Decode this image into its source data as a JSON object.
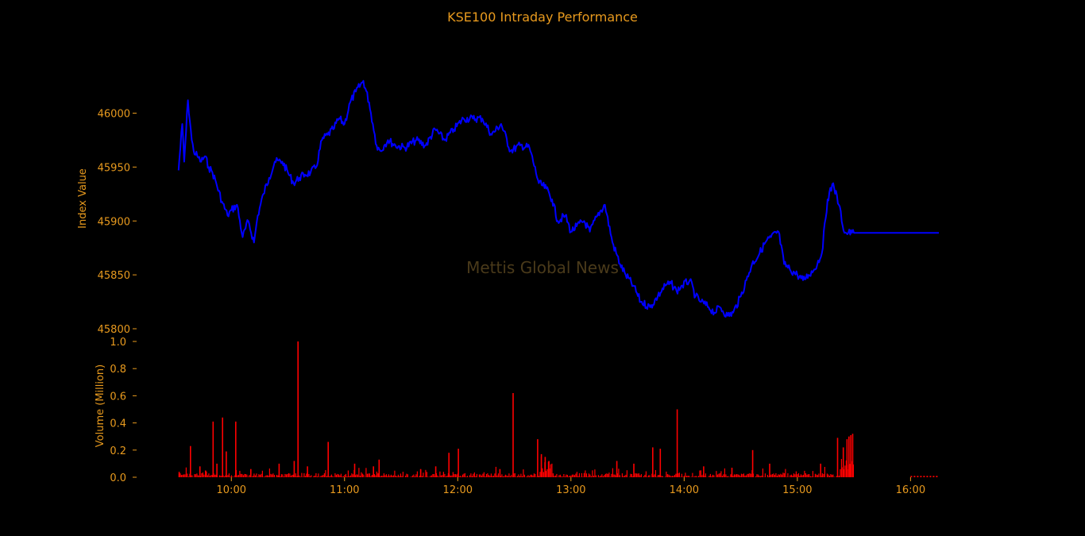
{
  "chart_data": {
    "title": "KSE100 Intraday Performance",
    "watermark": "Mettis Global News",
    "colors": {
      "text": "#e89a1e",
      "price_line": "#0000ff",
      "volume_bar": "#ff0000",
      "background": "#000000",
      "watermark": "#4a3a1a"
    },
    "panels": [
      {
        "type": "line",
        "ylabel": "Index Value",
        "ylim": [
          45800,
          46035
        ],
        "yticks": [
          45800,
          45850,
          45900,
          45950,
          46000
        ],
        "ytick_labels": [
          "45800",
          "45850",
          "45900",
          "45950",
          "46000"
        ],
        "series": [
          {
            "x": [
              "09:32",
              "09:34",
              "09:35",
              "09:37",
              "09:39",
              "09:40",
              "09:42",
              "09:44",
              "09:46",
              "09:48",
              "09:50",
              "09:52",
              "09:55",
              "09:58",
              "10:00",
              "10:03",
              "10:06",
              "10:09",
              "10:12",
              "10:14",
              "10:17",
              "10:20",
              "10:23",
              "10:27",
              "10:30",
              "10:33",
              "10:36",
              "10:39",
              "10:42",
              "10:45",
              "10:48",
              "10:51",
              "10:54",
              "10:57",
              "11:00",
              "11:03",
              "11:06",
              "11:10",
              "11:13",
              "11:15",
              "11:17",
              "11:19",
              "11:21",
              "11:23",
              "11:27",
              "11:32",
              "11:38",
              "11:43",
              "11:48",
              "11:53",
              "11:58",
              "12:03",
              "12:08",
              "12:13",
              "12:18",
              "12:23",
              "12:28",
              "12:33",
              "12:38",
              "12:43",
              "12:47",
              "12:50",
              "12:53",
              "12:57",
              "13:00",
              "13:03",
              "13:07",
              "13:10",
              "13:14",
              "13:18",
              "13:22",
              "13:26",
              "13:29",
              "13:33",
              "13:37",
              "13:42",
              "13:46",
              "13:50",
              "13:53",
              "13:56",
              "13:59",
              "14:03",
              "14:06",
              "14:09",
              "14:13",
              "14:16",
              "14:19",
              "14:23",
              "14:26",
              "14:30",
              "14:33",
              "14:36",
              "14:40",
              "14:43",
              "14:46",
              "14:50",
              "14:53",
              "14:56",
              "15:00",
              "15:03",
              "15:06",
              "15:09",
              "15:13",
              "15:16",
              "15:19",
              "15:22",
              "15:25",
              "15:27",
              "15:29",
              "15:30",
              "15:45",
              "16:00",
              "16:15"
            ],
            "y": [
              45947,
              45990,
              45955,
              46012,
              45975,
              45965,
              45960,
              45955,
              45960,
              45950,
              45945,
              45935,
              45918,
              45905,
              45910,
              45915,
              45885,
              45900,
              45880,
              45905,
              45925,
              45940,
              45955,
              45955,
              45945,
              45935,
              45940,
              45943,
              45945,
              45950,
              45975,
              45980,
              45985,
              45995,
              45990,
              46010,
              46020,
              46030,
              46010,
              45990,
              45970,
              45965,
              45970,
              45975,
              45970,
              45968,
              45975,
              45970,
              45985,
              45975,
              45985,
              45995,
              45995,
              45995,
              45980,
              45990,
              45965,
              45970,
              45968,
              45935,
              45930,
              45920,
              45900,
              45905,
              45890,
              45895,
              45900,
              45890,
              45905,
              45915,
              45880,
              45860,
              45850,
              45840,
              45825,
              45820,
              45830,
              45840,
              45842,
              45835,
              45840,
              45845,
              45830,
              45825,
              45820,
              45815,
              45820,
              45812,
              45815,
              45830,
              45845,
              45860,
              45870,
              45880,
              45885,
              45890,
              45860,
              45855,
              45850,
              45845,
              45850,
              45855,
              45870,
              45920,
              45935,
              45915,
              45889,
              45889,
              45889,
              45889,
              45889,
              45889,
              45889
            ]
          }
        ]
      },
      {
        "type": "bar",
        "ylabel": "Volume (Million)",
        "ylim": [
          0,
          1.0
        ],
        "yticks": [
          0.0,
          0.2,
          0.4,
          0.6,
          0.8,
          1.0
        ],
        "ytick_labels": [
          "0.0",
          "0.2",
          "0.4",
          "0.6",
          "0.8",
          "1.0"
        ],
        "xtick_labels": [
          "10:00",
          "11:00",
          "12:00",
          "13:00",
          "14:00",
          "15:00",
          "16:00"
        ],
        "spikes": [
          {
            "x": "09:32",
            "value": 0.04
          },
          {
            "x": "09:38",
            "value": 0.23
          },
          {
            "x": "09:43",
            "value": 0.08
          },
          {
            "x": "09:46",
            "value": 0.05
          },
          {
            "x": "09:50",
            "value": 0.41
          },
          {
            "x": "09:52",
            "value": 0.1
          },
          {
            "x": "09:55",
            "value": 0.44
          },
          {
            "x": "09:57",
            "value": 0.19
          },
          {
            "x": "10:02",
            "value": 0.41
          },
          {
            "x": "10:10",
            "value": 0.06
          },
          {
            "x": "10:25",
            "value": 0.1
          },
          {
            "x": "10:33",
            "value": 0.12
          },
          {
            "x": "10:35",
            "value": 1.0
          },
          {
            "x": "10:40",
            "value": 0.08
          },
          {
            "x": "10:51",
            "value": 0.26
          },
          {
            "x": "11:05",
            "value": 0.1
          },
          {
            "x": "11:15",
            "value": 0.08
          },
          {
            "x": "11:18",
            "value": 0.13
          },
          {
            "x": "11:40",
            "value": 0.06
          },
          {
            "x": "11:48",
            "value": 0.08
          },
          {
            "x": "11:55",
            "value": 0.18
          },
          {
            "x": "12:00",
            "value": 0.21
          },
          {
            "x": "12:22",
            "value": 0.06
          },
          {
            "x": "12:29",
            "value": 0.62
          },
          {
            "x": "12:42",
            "value": 0.28
          },
          {
            "x": "12:44",
            "value": 0.17
          },
          {
            "x": "12:46",
            "value": 0.15
          },
          {
            "x": "12:48",
            "value": 0.12
          },
          {
            "x": "13:24",
            "value": 0.12
          },
          {
            "x": "13:33",
            "value": 0.1
          },
          {
            "x": "13:43",
            "value": 0.22
          },
          {
            "x": "13:47",
            "value": 0.21
          },
          {
            "x": "13:56",
            "value": 0.5
          },
          {
            "x": "14:10",
            "value": 0.08
          },
          {
            "x": "14:25",
            "value": 0.07
          },
          {
            "x": "14:36",
            "value": 0.2
          },
          {
            "x": "14:45",
            "value": 0.1
          },
          {
            "x": "15:12",
            "value": 0.1
          },
          {
            "x": "15:21",
            "value": 0.29
          },
          {
            "x": "15:24",
            "value": 0.22
          },
          {
            "x": "15:26",
            "value": 0.28
          },
          {
            "x": "15:27",
            "value": 0.3
          },
          {
            "x": "15:28",
            "value": 0.31
          },
          {
            "x": "15:29",
            "value": 0.32
          }
        ]
      }
    ]
  }
}
